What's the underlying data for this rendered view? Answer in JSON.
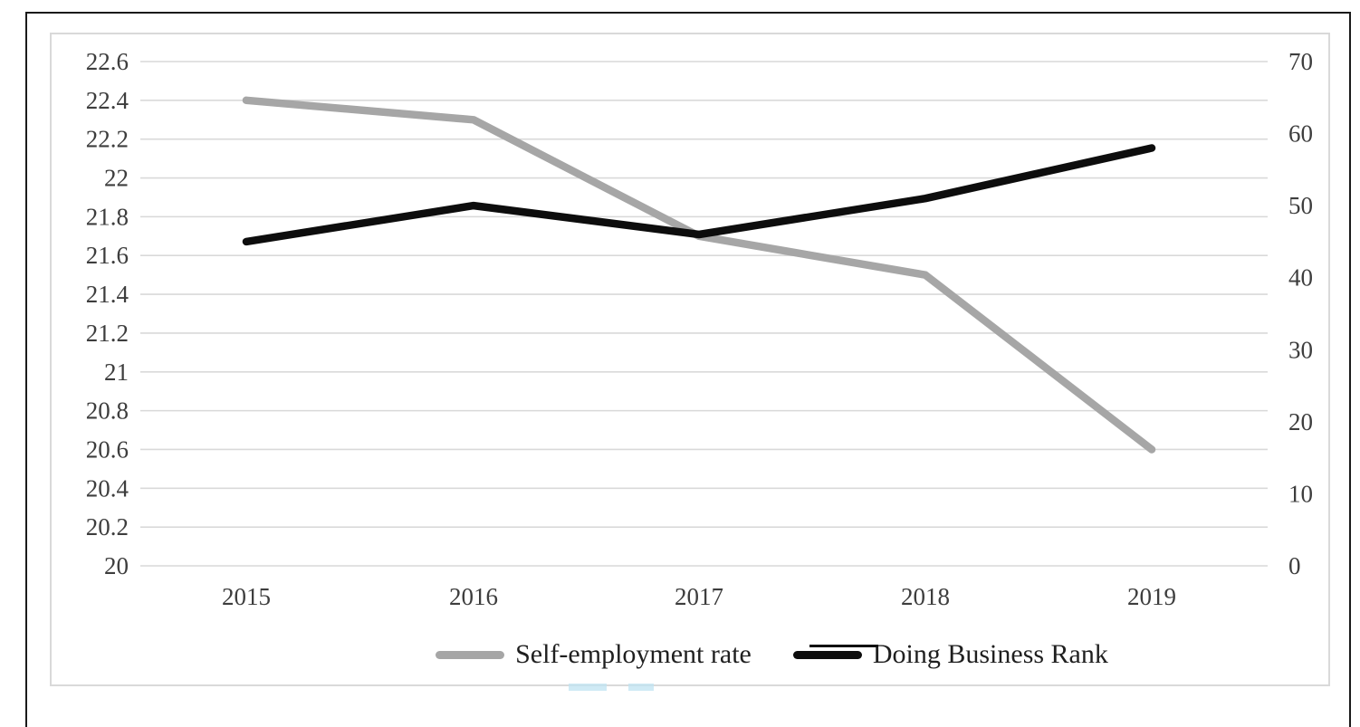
{
  "chart_data": {
    "type": "line",
    "categories": [
      "2015",
      "2016",
      "2017",
      "2018",
      "2019"
    ],
    "series": [
      {
        "name": "Self-employment rate",
        "axis": "left",
        "color": "#a6a6a6",
        "values": [
          22.4,
          22.3,
          21.7,
          21.5,
          20.6
        ]
      },
      {
        "name": "Doing Business Rank",
        "axis": "right",
        "color": "#0d0d0d",
        "values": [
          45,
          50,
          46,
          51,
          58
        ]
      }
    ],
    "left_axis": {
      "min": 20,
      "max": 22.6,
      "step": 0.2,
      "ticks": [
        "22.6",
        "22.4",
        "22.2",
        "22",
        "21.8",
        "21.6",
        "21.4",
        "21.2",
        "21",
        "20.8",
        "20.6",
        "20.4",
        "20.2",
        "20"
      ]
    },
    "right_axis": {
      "min": 0,
      "max": 70,
      "step": 10,
      "ticks": [
        "70",
        "60",
        "50",
        "40",
        "30",
        "20",
        "10",
        "0"
      ]
    },
    "title": "",
    "xlabel": "",
    "ylabel": "",
    "grid": true,
    "legend_position": "bottom"
  },
  "colors": {
    "gridline": "#d9d9d9",
    "tick_label": "#3d3d3d",
    "frame_outer": "#1a1a1a",
    "frame_inner": "#d9d9d9",
    "background": "#ffffff"
  },
  "legend": {
    "items": [
      {
        "label": "Self-employment rate"
      },
      {
        "label": "Doing Business Rank"
      }
    ]
  }
}
